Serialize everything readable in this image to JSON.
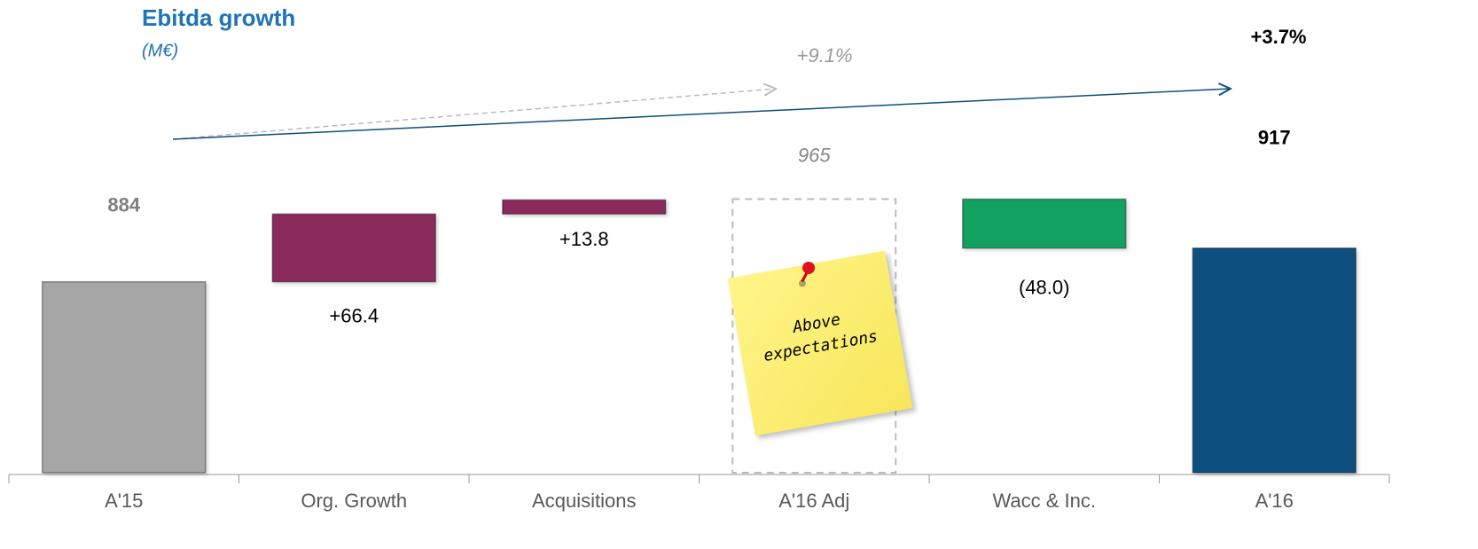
{
  "chart_data": {
    "type": "waterfall",
    "title": "Ebitda growth",
    "subtitle": "(M€)",
    "categories": [
      "A'15",
      "Org. Growth",
      "Acquisitions",
      "A'16 Adj",
      "Wacc & Inc.",
      "A'16"
    ],
    "values": [
      884,
      66.4,
      13.8,
      965,
      -48.0,
      917
    ],
    "value_labels": [
      "884",
      "+66.4",
      "+13.8",
      "965",
      "(48.0)",
      "917"
    ],
    "measures": [
      "absolute",
      "relative",
      "relative",
      "total",
      "relative",
      "total"
    ],
    "colors": [
      "#a6a6a6",
      "#8b2a5c",
      "#8b2a5c",
      null,
      "#12a160",
      "#0d4f7e"
    ],
    "ylim": [
      697,
      1160
    ],
    "annotations": [
      "+9.1%",
      "+3.7%"
    ],
    "note": "Above expectations"
  }
}
